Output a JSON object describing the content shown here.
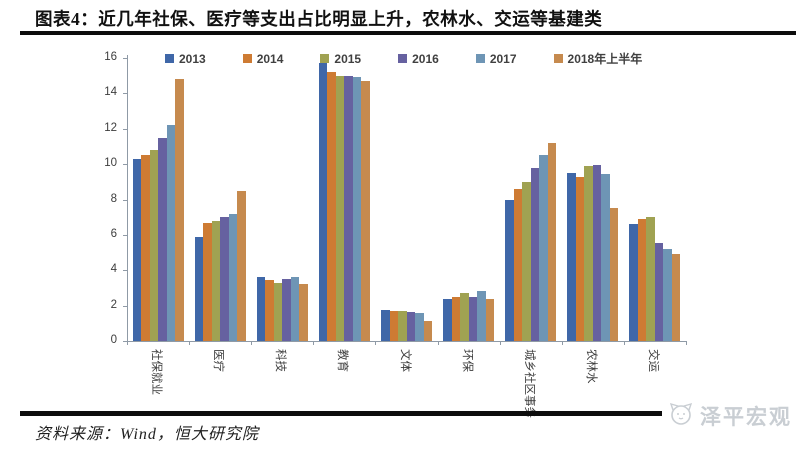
{
  "header": {
    "title": "图表4：近几年社保、医疗等支出占比明显上升，农林水、交运等基建类"
  },
  "footer": {
    "source_note": "资料来源：Wind，恒大研究院",
    "brand": {
      "name": "泽平宏观",
      "icon": "mascot-icon"
    }
  },
  "chart_data": {
    "type": "bar",
    "title": "图表4：近几年社保、医疗等支出占比明显上升，农林水、交运等基建类",
    "categories": [
      "社保就业",
      "医疗",
      "科技",
      "教育",
      "文体",
      "环保",
      "城乡社区事务",
      "农林水",
      "交运"
    ],
    "series": [
      {
        "name": "2013",
        "color": "#3F67A8",
        "values": [
          10.3,
          5.9,
          3.6,
          15.7,
          1.75,
          2.4,
          8.0,
          9.5,
          6.6
        ]
      },
      {
        "name": "2014",
        "color": "#CE7B33",
        "values": [
          10.5,
          6.7,
          3.45,
          15.2,
          1.7,
          2.5,
          8.6,
          9.3,
          6.9
        ]
      },
      {
        "name": "2015",
        "color": "#A0A252",
        "values": [
          10.8,
          6.8,
          3.3,
          15.0,
          1.7,
          2.7,
          9.0,
          9.9,
          7.0
        ]
      },
      {
        "name": "2016",
        "color": "#6661A0",
        "values": [
          11.5,
          7.0,
          3.5,
          15.0,
          1.65,
          2.5,
          9.8,
          9.95,
          5.55
        ]
      },
      {
        "name": "2017",
        "color": "#6E95B5",
        "values": [
          12.2,
          7.2,
          3.6,
          14.9,
          1.6,
          2.8,
          10.5,
          9.45,
          5.2
        ]
      },
      {
        "name": "2018年上半年",
        "color": "#C68A4E",
        "values": [
          14.8,
          8.5,
          3.25,
          14.7,
          1.15,
          2.35,
          11.2,
          7.5,
          4.9
        ]
      }
    ],
    "ylim": [
      0,
      16
    ],
    "yticks": [
      0,
      2,
      4,
      6,
      8,
      10,
      12,
      14,
      16
    ],
    "legend_position": "top",
    "grid": false,
    "xlabel": "",
    "ylabel": ""
  }
}
